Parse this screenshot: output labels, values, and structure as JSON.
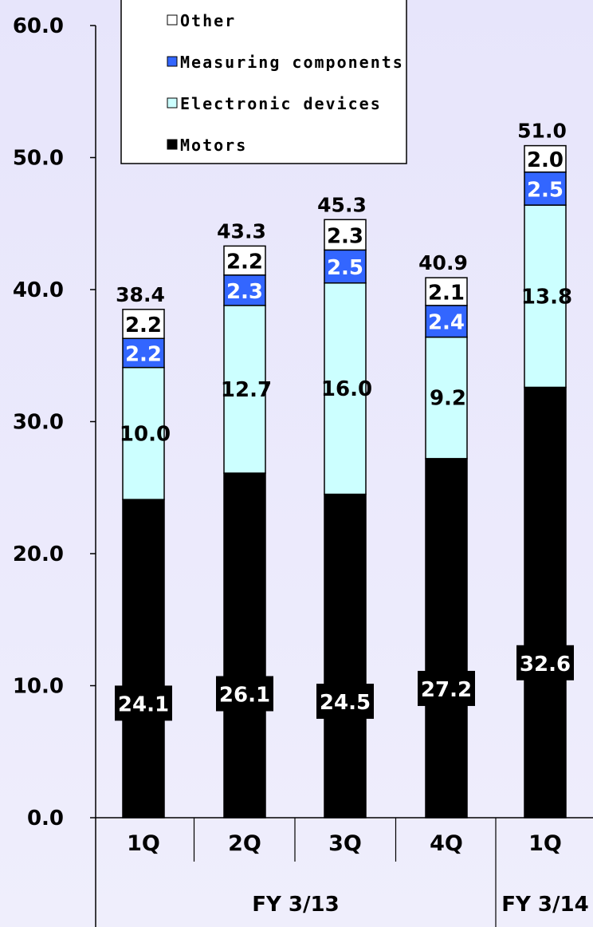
{
  "chart_data": {
    "type": "bar",
    "stacked": true,
    "categories": [
      "1Q",
      "2Q",
      "3Q",
      "4Q",
      "1Q"
    ],
    "groups": [
      {
        "label": "FY 3/13",
        "categories": [
          0,
          1,
          2,
          3
        ]
      },
      {
        "label": "FY 3/14",
        "categories": [
          4
        ]
      }
    ],
    "series": [
      {
        "name": "Motors",
        "color": "#000000",
        "label_color": "#ffffff",
        "values": [
          24.1,
          26.1,
          24.5,
          27.2,
          32.6
        ]
      },
      {
        "name": "Electronic devices",
        "color": "#ccffff",
        "label_color": "#000000",
        "values": [
          10.0,
          12.7,
          16.0,
          9.2,
          13.8
        ]
      },
      {
        "name": "Measuring components",
        "color": "#3366ff",
        "label_color": "#ffffff",
        "values": [
          2.2,
          2.3,
          2.5,
          2.4,
          2.5
        ]
      },
      {
        "name": "Other",
        "color": "#ffffff",
        "label_color": "#000000",
        "values": [
          2.2,
          2.2,
          2.3,
          2.1,
          2.0
        ]
      }
    ],
    "totals": [
      "38.4",
      "43.3",
      "45.3",
      "40.9",
      "51.0"
    ],
    "ylim": [
      0,
      60
    ],
    "yticks": [
      "0.0",
      "10.0",
      "20.0",
      "30.0",
      "40.0",
      "50.0",
      "60.0"
    ],
    "legend": {
      "position": "top-left",
      "order": [
        "Other",
        "Measuring components",
        "Electronic devices",
        "Motors"
      ]
    },
    "grid": false
  }
}
